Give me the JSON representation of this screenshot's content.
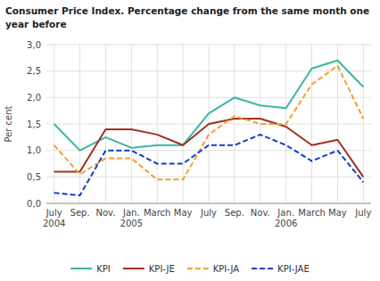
{
  "chart_data": {
    "type": "line",
    "title": "Consumer Price Index. Percentage change from the same month one\nyear before",
    "y_label": "Per cent",
    "categories": [
      "July\n2004",
      "Sep.",
      "Nov.",
      "Jan.\n2005",
      "March",
      "May",
      "July",
      "Sep.",
      "Nov.",
      "Jan.\n2006",
      "March",
      "May",
      "July"
    ],
    "ylim": [
      0.0,
      3.0
    ],
    "yticks": [
      {
        "value": 0.0,
        "label": "0,0"
      },
      {
        "value": 0.5,
        "label": "0,5"
      },
      {
        "value": 1.0,
        "label": "1,0"
      },
      {
        "value": 1.5,
        "label": "1,5"
      },
      {
        "value": 2.0,
        "label": "2,0"
      },
      {
        "value": 2.5,
        "label": "2,5"
      },
      {
        "value": 3.0,
        "label": "3,0"
      }
    ],
    "grid": true,
    "legend": "bottom",
    "series": [
      {
        "name": "KPI",
        "color": "#3ab5a5",
        "line_style": "solid",
        "values": [
          1.5,
          1.0,
          1.25,
          1.05,
          1.1,
          1.1,
          1.7,
          2.0,
          1.85,
          1.8,
          2.55,
          2.7,
          2.2
        ]
      },
      {
        "name": "KPI-JE",
        "color": "#a03020",
        "line_style": "solid",
        "values": [
          0.6,
          0.6,
          1.4,
          1.4,
          1.3,
          1.1,
          1.5,
          1.6,
          1.6,
          1.45,
          1.1,
          1.2,
          0.5
        ]
      },
      {
        "name": "KPI-JA",
        "color": "#f0a030",
        "line_style": "dashed",
        "values": [
          1.1,
          0.55,
          0.85,
          0.85,
          0.45,
          0.45,
          1.3,
          1.65,
          1.5,
          1.5,
          2.25,
          2.6,
          1.6
        ]
      },
      {
        "name": "KPI-JAE",
        "color": "#1040c0",
        "line_style": "dashed",
        "values": [
          0.2,
          0.15,
          1.0,
          1.0,
          0.75,
          0.75,
          1.1,
          1.1,
          1.3,
          1.1,
          0.8,
          1.0,
          0.4
        ]
      }
    ]
  }
}
